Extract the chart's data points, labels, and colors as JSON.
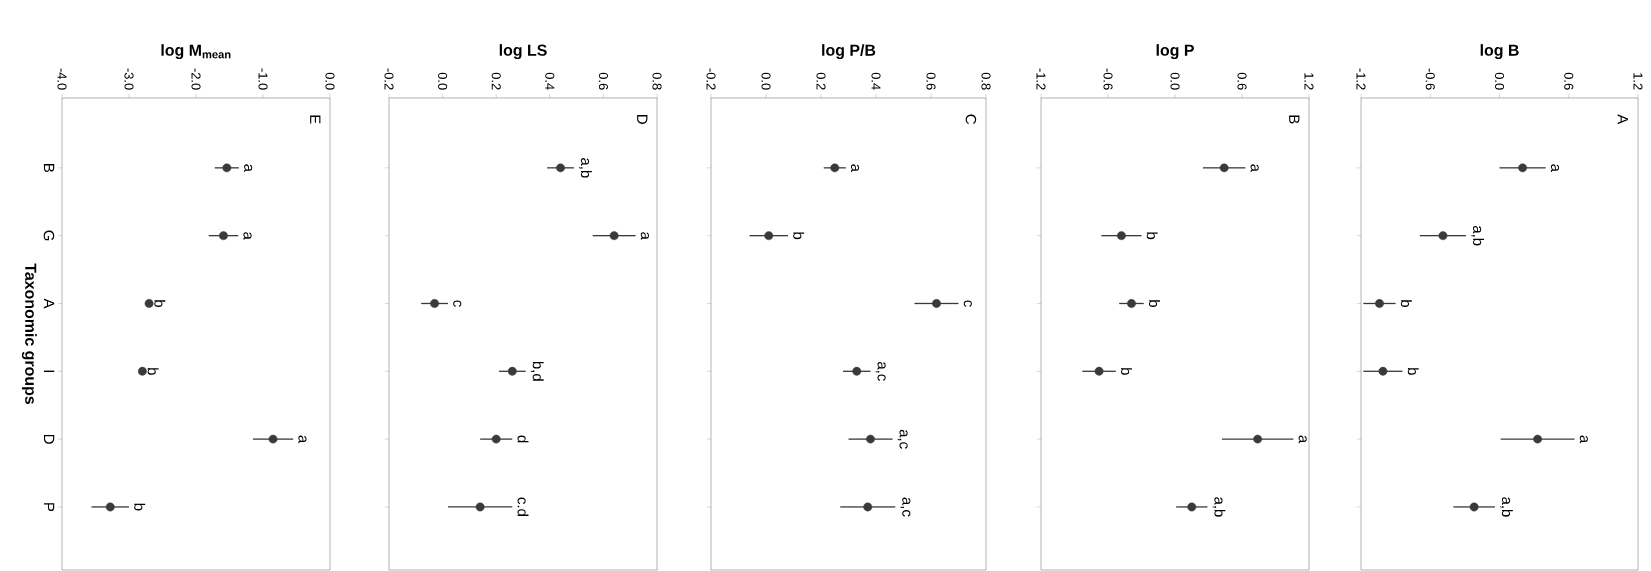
{
  "chart_data": [
    {
      "type": "scatter",
      "orientation": "horizontal",
      "xlabel": "log M$_{mean}$",
      "ylabel": "Taxonomic groups",
      "categories": [
        "B",
        "G",
        "A",
        "I",
        "D",
        "P"
      ],
      "values": [
        -1.54,
        -1.59,
        -2.7,
        -2.8,
        -0.85,
        -3.28
      ],
      "errors": [
        0.18,
        0.22,
        null,
        null,
        0.3,
        0.28
      ],
      "value_labels": [
        "a",
        "a",
        "b",
        "b",
        "a",
        "b"
      ],
      "color": "#3a3a3a",
      "marker": "circle",
      "xlim": [
        -4,
        0
      ],
      "xticks": [
        {
          "value": -4,
          "label": "-4.0"
        },
        {
          "value": -3,
          "label": "-3.0"
        },
        {
          "value": -2,
          "label": "-2.0"
        },
        {
          "value": -1,
          "label": "-1.0"
        },
        {
          "value": 0,
          "label": "0.0"
        }
      ],
      "annotations": [
        "E"
      ]
    },
    {
      "type": "scatter",
      "orientation": "horizontal",
      "xlabel": "log LS",
      "categories": [
        null,
        null,
        null,
        null,
        null,
        null
      ],
      "values": [
        0.44,
        0.64,
        -0.03,
        0.26,
        0.2,
        0.14
      ],
      "errors": [
        0.05,
        0.08,
        0.05,
        0.05,
        0.06,
        0.12
      ],
      "value_labels": [
        "a,b",
        "a",
        "c",
        "b,d",
        "d",
        "c.d"
      ],
      "color": "#3a3a3a",
      "marker": "circle",
      "xlim": [
        -0.2,
        0.8
      ],
      "xticks": [
        -0.2,
        {
          "value": 0,
          "label": "0.0"
        },
        0.2,
        0.4,
        0.6,
        0.8
      ],
      "tick_labels": "x",
      "annotations": [
        "D"
      ]
    },
    {
      "type": "scatter",
      "orientation": "horizontal",
      "xlabel": "log P/B",
      "categories": [
        null,
        null,
        null,
        null,
        null,
        null
      ],
      "values": [
        0.25,
        0.01,
        0.62,
        0.33,
        0.38,
        0.37
      ],
      "errors": [
        0.04,
        0.07,
        0.08,
        0.05,
        0.08,
        0.1
      ],
      "value_labels": [
        "a",
        "b",
        "c",
        "a,c",
        "a,c",
        "a,c"
      ],
      "color": "#3a3a3a",
      "marker": "circle",
      "xlim": [
        -0.2,
        0.8
      ],
      "xticks": [
        -0.2,
        {
          "value": 0,
          "label": "0.0"
        },
        0.2,
        0.4,
        0.6,
        0.8
      ],
      "tick_labels": "x",
      "annotations": [
        "C"
      ]
    },
    {
      "type": "scatter",
      "orientation": "horizontal",
      "xlabel": "log P",
      "categories": [
        null,
        null,
        null,
        null,
        null,
        null
      ],
      "values": [
        0.44,
        -0.48,
        -0.39,
        -0.68,
        0.74,
        0.15
      ],
      "errors": [
        0.19,
        0.18,
        0.11,
        0.15,
        0.32,
        0.14
      ],
      "value_labels": [
        "a",
        "b",
        "b",
        "b",
        "a",
        "a,b"
      ],
      "color": "#3a3a3a",
      "marker": "circle",
      "xlim": [
        -1.2,
        1.2
      ],
      "xticks": [
        -1.2,
        -0.6,
        {
          "value": 0,
          "label": "0.0"
        },
        0.6,
        1.2
      ],
      "tick_labels": "x",
      "annotations": [
        "B"
      ]
    },
    {
      "type": "scatter",
      "orientation": "horizontal",
      "xlabel": "log B",
      "categories": [
        null,
        null,
        null,
        null,
        null,
        null
      ],
      "values": [
        0.2,
        -0.49,
        -1.04,
        -1.01,
        0.33,
        -0.22
      ],
      "errors": [
        0.2,
        0.2,
        0.14,
        0.17,
        0.32,
        0.18
      ],
      "value_labels": [
        "a",
        "a,b",
        "b",
        "b",
        "a",
        "a,b"
      ],
      "color": "#3a3a3a",
      "marker": "circle",
      "xlim": [
        -1.2,
        1.2
      ],
      "xticks": [
        -1.2,
        -0.6,
        {
          "value": 0,
          "label": "0.0"
        },
        0.6,
        1.2
      ],
      "tick_labels": "x",
      "annotations": [
        "A"
      ]
    }
  ]
}
